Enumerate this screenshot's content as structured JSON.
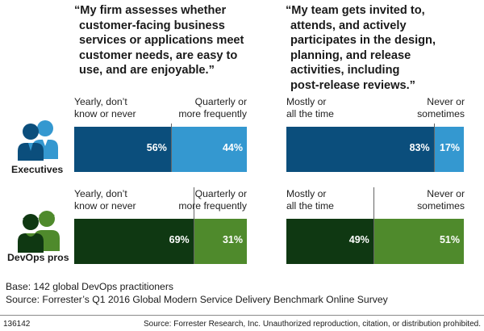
{
  "charts": {
    "left": {
      "quote": [
        "“My firm assesses whether",
        "customer-facing business",
        "services or applications meet",
        "customer needs, are easy to",
        "use, and are enjoyable.”"
      ]
    },
    "right": {
      "quote": [
        "“My team gets invited to,",
        "attends, and actively",
        "participates in the design,",
        "planning, and release",
        "activities, including",
        "post-release reviews.”"
      ]
    }
  },
  "groups": {
    "executives": "Executives",
    "devops": "DevOps pros"
  },
  "chart_data": [
    {
      "type": "bar",
      "stacked": true,
      "orientation": "horizontal",
      "title": "“My firm assesses whether customer-facing business services or applications meet customer needs, are easy to use, and are enjoyable.”",
      "categories": [
        "Executives",
        "DevOps pros"
      ],
      "series": [
        {
          "name": "Yearly, don’t know or never",
          "values": [
            56,
            69
          ],
          "labels": [
            "56%",
            "69%"
          ],
          "legend_lines": [
            "Yearly, don’t",
            "know or never"
          ]
        },
        {
          "name": "Quarterly or more frequently",
          "values": [
            44,
            31
          ],
          "labels": [
            "44%",
            "31%"
          ],
          "legend_lines": [
            "Quarterly or",
            "more frequently"
          ]
        }
      ]
    },
    {
      "type": "bar",
      "stacked": true,
      "orientation": "horizontal",
      "title": "“My team gets invited to, attends, and actively participates in the design, planning, and release activities, including post-release reviews.”",
      "categories": [
        "Executives",
        "DevOps pros"
      ],
      "series": [
        {
          "name": "Mostly or all the time",
          "values": [
            83,
            49
          ],
          "labels": [
            "83%",
            "49%"
          ],
          "legend_lines": [
            "Mostly or",
            "all the time"
          ]
        },
        {
          "name": "Never or sometimes",
          "values": [
            17,
            51
          ],
          "labels": [
            "17%",
            "51%"
          ],
          "legend_lines": [
            "Never or",
            "sometimes"
          ]
        }
      ]
    }
  ],
  "colors": {
    "exec_dark": "#0b4e7c",
    "exec_light": "#3498d0",
    "devops_dark": "#0f3812",
    "devops_light": "#4f8a2c"
  },
  "icons": {
    "executives": "executives-people-icon",
    "devops": "devops-people-icon"
  },
  "footnotes": {
    "base": "Base: 142 global DevOps practitioners",
    "source": "Source: Forrester’s Q1 2016 Global Modern Service Delivery Benchmark Online Survey"
  },
  "footer": {
    "id": "136142",
    "credit": "Source: Forrester Research, Inc. Unauthorized reproduction, citation, or distribution prohibited."
  }
}
